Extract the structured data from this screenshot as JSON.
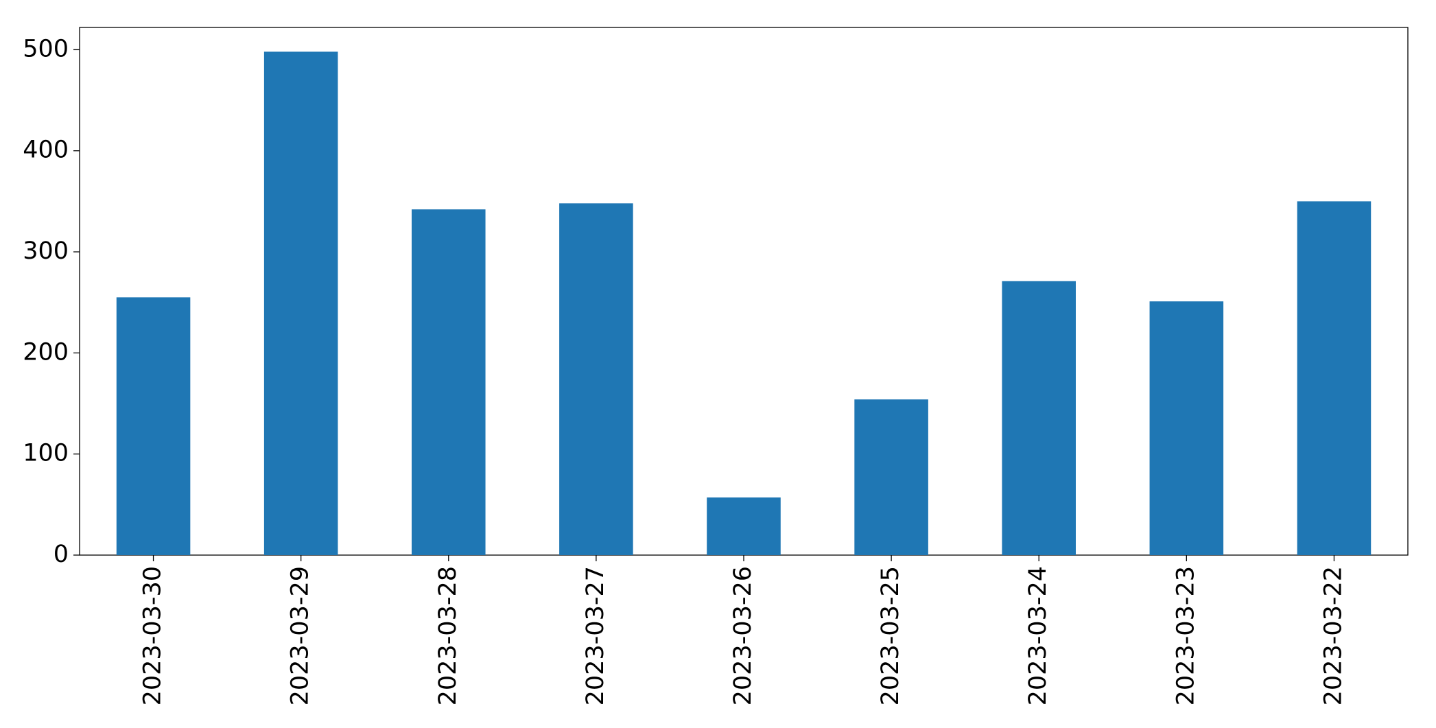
{
  "chart_data": {
    "type": "bar",
    "categories": [
      "2023-03-30",
      "2023-03-29",
      "2023-03-28",
      "2023-03-27",
      "2023-03-26",
      "2023-03-25",
      "2023-03-24",
      "2023-03-23",
      "2023-03-22"
    ],
    "values": [
      255,
      498,
      342,
      348,
      57,
      154,
      271,
      251,
      350
    ],
    "color": "#1f77b4",
    "ylim": [
      0,
      522
    ],
    "yticks": [
      0,
      100,
      200,
      300,
      400,
      500
    ],
    "grid": false
  }
}
